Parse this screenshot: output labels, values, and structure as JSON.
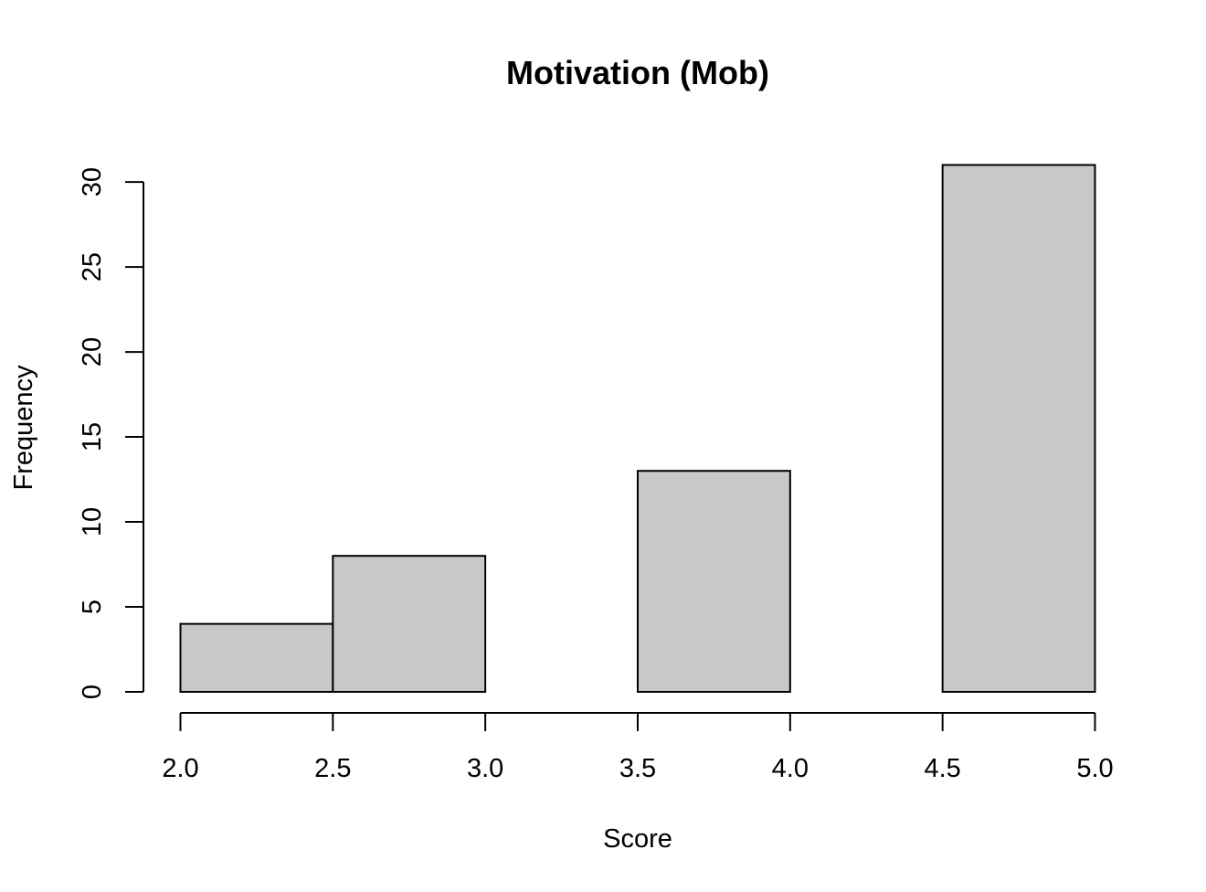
{
  "chart_data": {
    "type": "histogram",
    "title": "Motivation (Mob)",
    "xlabel": "Score",
    "ylabel": "Frequency",
    "bins": [
      {
        "start": 2.0,
        "end": 2.5,
        "count": 4
      },
      {
        "start": 2.5,
        "end": 3.0,
        "count": 8
      },
      {
        "start": 3.0,
        "end": 3.5,
        "count": 0
      },
      {
        "start": 3.5,
        "end": 4.0,
        "count": 13
      },
      {
        "start": 4.0,
        "end": 4.5,
        "count": 0
      },
      {
        "start": 4.5,
        "end": 5.0,
        "count": 31
      }
    ],
    "xlim": [
      2.0,
      5.0
    ],
    "ylim": [
      0,
      31
    ],
    "xticks": [
      "2.0",
      "2.5",
      "3.0",
      "3.5",
      "4.0",
      "4.5",
      "5.0"
    ],
    "yticks": [
      "0",
      "5",
      "10",
      "15",
      "20",
      "25",
      "30"
    ],
    "grid": false,
    "bar_color": "#c8c8c8",
    "edge_color": "#000000"
  }
}
